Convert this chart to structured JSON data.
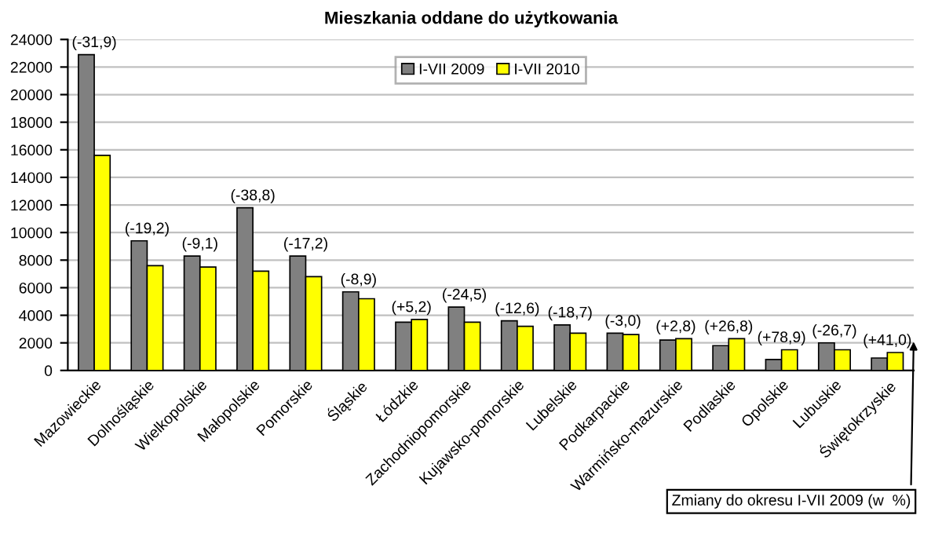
{
  "chart_data": {
    "type": "bar",
    "title": "Mieszkania oddane do użytkowania",
    "categories": [
      "Mazowieckie",
      "Dolnośląskie",
      "Wielkopolskie",
      "Małopolskie",
      "Pomorskie",
      "Śląskie",
      "Łódzkie",
      "Zachodniopomorskie",
      "Kujawsko-pomorskie",
      "Lubelskie",
      "Podkarpackie",
      "Warmińsko-mazurskie",
      "Podlaskie",
      "Opolskie",
      "Lubuskie",
      "Świętokrzyskie"
    ],
    "series": [
      {
        "name": "I-VII 2009",
        "color": "#808080",
        "values": [
          22900,
          9400,
          8300,
          11800,
          8300,
          5700,
          3500,
          4600,
          3600,
          3300,
          2700,
          2200,
          1800,
          800,
          2000,
          900
        ]
      },
      {
        "name": "I-VII 2010",
        "color": "#ffff00",
        "values": [
          15600,
          7600,
          7500,
          7200,
          6800,
          5200,
          3700,
          3500,
          3200,
          2700,
          2600,
          2300,
          2300,
          1500,
          1500,
          1300
        ]
      }
    ],
    "ylim": [
      0,
      24000
    ],
    "yticks": [
      0,
      2000,
      4000,
      6000,
      8000,
      10000,
      12000,
      14000,
      16000,
      18000,
      20000,
      22000,
      24000
    ],
    "grid": "y",
    "legend": "top",
    "annotations": [
      {
        "text": "(-31,9)",
        "x": "Mazowieckie",
        "y": 22900
      },
      {
        "text": "(-19,2)",
        "x": "Dolnośląskie",
        "y": 9400
      },
      {
        "text": "(-9,1)",
        "x": "Wielkopolskie",
        "y": 8300
      },
      {
        "text": "(-38,8)",
        "x": "Małopolskie",
        "y": 11800
      },
      {
        "text": "(-17,2)",
        "x": "Pomorskie",
        "y": 8300
      },
      {
        "text": "(-8,9)",
        "x": "Śląskie",
        "y": 5700
      },
      {
        "text": "(+5,2)",
        "x": "Łódzkie",
        "y": 3700
      },
      {
        "text": "(-24,5)",
        "x": "Zachodniopomorskie",
        "y": 4600
      },
      {
        "text": "(-12,6)",
        "x": "Kujawsko-pomorskie",
        "y": 3600
      },
      {
        "text": "(-18,7)",
        "x": "Lubelskie",
        "y": 3300
      },
      {
        "text": "(-3,0)",
        "x": "Podkarpackie",
        "y": 2700
      },
      {
        "text": "(+2,8)",
        "x": "Warmińsko-mazurskie",
        "y": 2300
      },
      {
        "text": "(+26,8)",
        "x": "Podlaskie",
        "y": 2300
      },
      {
        "text": "(+78,9)",
        "x": "Opolskie",
        "y": 1500
      },
      {
        "text": "(-26,7)",
        "x": "Lubuskie",
        "y": 2000
      },
      {
        "text": "(+41,0)",
        "x": "Świętokrzyskie",
        "y": 1300
      },
      "Zmiany do okresu I-VII 2009 (w  %)"
    ]
  }
}
